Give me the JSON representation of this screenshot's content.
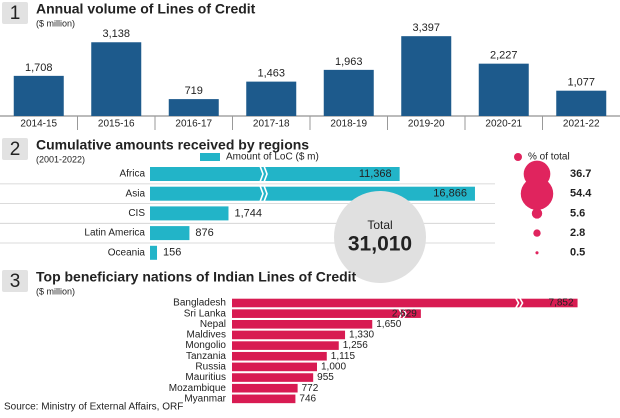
{
  "chart_data": [
    {
      "type": "bar",
      "number": "1",
      "title": "Annual volume of Lines of Credit",
      "subtitle": "($ million)",
      "categories": [
        "2014-15",
        "2015-16",
        "2016-17",
        "2017-18",
        "2018-19",
        "2019-20",
        "2020-21",
        "2021-22"
      ],
      "values": [
        1708,
        3138,
        719,
        1463,
        1963,
        3397,
        2227,
        1077
      ],
      "value_labels": [
        "1,708",
        "3,138",
        "719",
        "1,463",
        "1,963",
        "3,397",
        "2,227",
        "1,077"
      ],
      "color": "#1d5a8c"
    },
    {
      "type": "bar",
      "orientation": "horizontal",
      "axis_break": true,
      "number": "2",
      "title": "Cumulative amounts received by regions",
      "subtitle": "(2001-2022)",
      "categories": [
        "Africa",
        "Asia",
        "CIS",
        "Latin America",
        "Oceania"
      ],
      "series": [
        {
          "name": "Amount of LoC ($ m)",
          "color": "#22b4c8",
          "values": [
            11368,
            16866,
            1744,
            876,
            156
          ],
          "value_labels": [
            "11,368",
            "16,866",
            "1,744",
            "876",
            "156"
          ]
        },
        {
          "name": "% of total",
          "type": "bubble",
          "color": "#e0245e",
          "values": [
            36.7,
            54.4,
            5.6,
            2.8,
            0.5
          ]
        }
      ],
      "total": {
        "title": "Total",
        "value": 31010,
        "label": "31,010"
      }
    },
    {
      "type": "bar",
      "orientation": "horizontal",
      "axis_break": true,
      "number": "3",
      "title": "Top beneficiary nations of Indian Lines of Credit",
      "subtitle": "($ million)",
      "categories": [
        "Bangladesh",
        "Sri Lanka",
        "Nepal",
        "Maldives",
        "Mongolio",
        "Tanzania",
        "Russia",
        "Mauritius",
        "Mozambique",
        "Myanmar"
      ],
      "values": [
        7852,
        2629,
        1650,
        1330,
        1256,
        1115,
        1000,
        955,
        772,
        746
      ],
      "value_labels": [
        "7,852",
        "2,629",
        "1,650",
        "1,330",
        "1,256",
        "1,115",
        "1,000",
        "955",
        "772",
        "746"
      ],
      "color": "#d81b52",
      "source": "Source: Ministry of External Affairs, ORF"
    }
  ]
}
